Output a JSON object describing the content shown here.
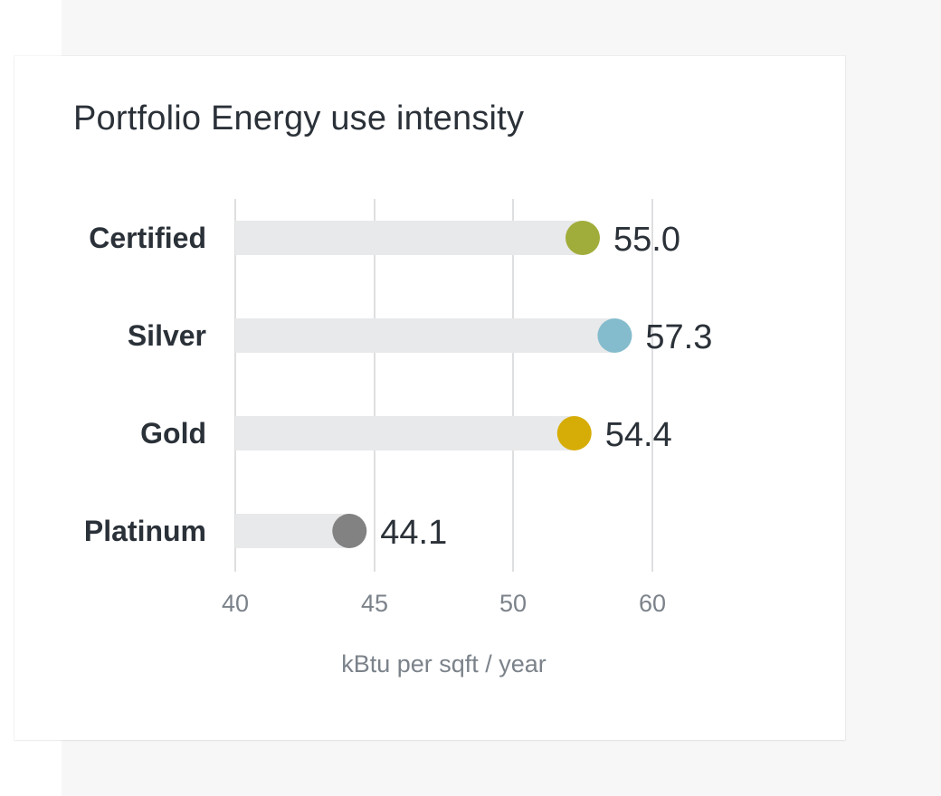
{
  "card": {
    "title": "Portfolio Energy use intensity"
  },
  "chart_data": {
    "type": "lollipop",
    "title": "Portfolio Energy use intensity",
    "xlabel": "kBtu per sqft / year",
    "ylabel": "",
    "categories": [
      "Certified",
      "Silver",
      "Gold",
      "Platinum"
    ],
    "values": [
      55.0,
      57.3,
      54.4,
      44.1
    ],
    "value_labels": [
      "55.0",
      "57.3",
      "54.4",
      "44.1"
    ],
    "colors": [
      "#a1ad3a",
      "#84bccd",
      "#d6ad07",
      "#828282"
    ],
    "x_ticks": [
      40,
      45,
      50,
      60
    ],
    "x_tick_labels": [
      "40",
      "45",
      "50",
      "60"
    ],
    "grid": true,
    "track_color": "#e8e9ea",
    "grid_color": "#dedfe1"
  }
}
